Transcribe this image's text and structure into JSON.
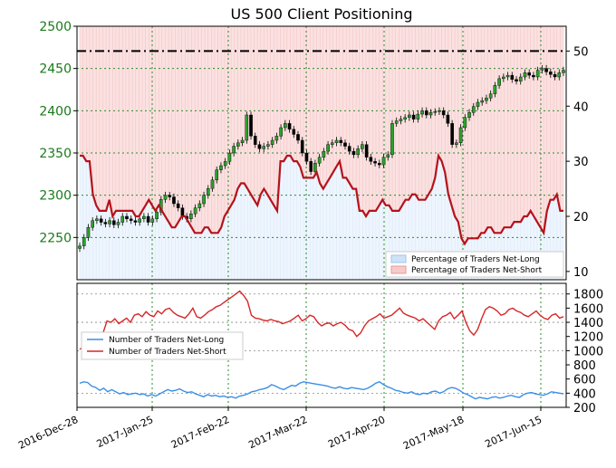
{
  "chart_data": [
    {
      "type": "candlestick",
      "title": "US 500 Client Positioning",
      "left_axis": {
        "ticks": [
          2250,
          2300,
          2350,
          2400,
          2450,
          2500
        ],
        "ylim": [
          2200,
          2500
        ],
        "color": "#1a7a1a"
      },
      "right_axis": {
        "ticks": [
          10,
          20,
          30,
          40,
          50
        ],
        "ylim": [
          8.5,
          54.5
        ]
      },
      "reference_line": {
        "axis": "right",
        "value": 50,
        "style": "dash-dot"
      },
      "x_ticks": [
        "2016-Dec-28",
        "2017-Jan-25",
        "2017-Feb-22",
        "2017-Mar-22",
        "2017-Apr-20",
        "2017-May-18",
        "2017-Jun-15"
      ],
      "legend": {
        "placement": "bottom-right",
        "entries": [
          "Percentage of Traders Net-Long",
          "Percentage of Traders Net-Short"
        ]
      },
      "price_close_approx": [
        2240,
        2250,
        2262,
        2270,
        2272,
        2268,
        2266,
        2270,
        2265,
        2268,
        2275,
        2272,
        2270,
        2268,
        2272,
        2275,
        2268,
        2272,
        2280,
        2295,
        2300,
        2298,
        2290,
        2285,
        2275,
        2272,
        2278,
        2285,
        2290,
        2300,
        2308,
        2318,
        2330,
        2335,
        2340,
        2350,
        2358,
        2362,
        2365,
        2395,
        2370,
        2360,
        2355,
        2358,
        2360,
        2365,
        2370,
        2380,
        2385,
        2378,
        2372,
        2365,
        2350,
        2340,
        2328,
        2338,
        2345,
        2352,
        2360,
        2362,
        2365,
        2362,
        2358,
        2352,
        2348,
        2355,
        2360,
        2345,
        2340,
        2338,
        2336,
        2345,
        2348,
        2385,
        2388,
        2390,
        2392,
        2395,
        2390,
        2396,
        2400,
        2395,
        2398,
        2399,
        2400,
        2395,
        2385,
        2360,
        2362,
        2380,
        2392,
        2398,
        2405,
        2410,
        2412,
        2415,
        2420,
        2430,
        2438,
        2440,
        2442,
        2437,
        2435,
        2440,
        2445,
        2442,
        2440,
        2448,
        2450,
        2446,
        2443,
        2440,
        2445,
        2448
      ],
      "pct_net_short_approx": [
        31,
        31,
        30,
        30,
        24,
        22,
        21,
        21,
        21,
        23,
        20,
        21,
        21,
        21,
        21,
        21,
        21,
        20,
        20,
        21,
        22,
        23,
        22,
        21,
        22,
        21,
        20,
        19,
        18,
        18,
        19,
        20,
        20,
        19,
        18,
        17,
        17,
        17,
        18,
        18,
        17,
        17,
        17,
        18,
        20,
        21,
        22,
        23,
        25,
        26,
        26,
        25,
        24,
        23,
        22,
        24,
        25,
        24,
        23,
        22,
        21,
        30,
        30,
        31,
        31,
        30,
        30,
        29,
        27,
        27,
        27,
        27,
        28,
        26,
        25,
        26,
        27,
        28,
        29,
        30,
        27,
        27,
        26,
        25,
        25,
        21,
        21,
        20,
        21,
        21,
        21,
        22,
        23,
        22,
        22,
        21,
        21,
        21,
        22,
        23,
        23,
        24,
        24,
        23,
        23,
        23,
        24,
        25,
        27,
        31,
        30,
        28,
        24,
        22,
        20,
        19,
        16,
        15,
        16,
        16,
        16,
        16,
        17,
        17,
        18,
        18,
        17,
        17,
        17,
        18,
        18,
        18,
        19,
        19,
        19,
        20,
        20,
        21,
        20,
        19,
        18,
        17,
        21,
        23,
        23,
        24,
        21,
        21
      ]
    },
    {
      "type": "line",
      "y_ticks": [
        200,
        400,
        600,
        800,
        1000,
        1200,
        1400,
        1600,
        1800
      ],
      "ylim": [
        200,
        1950
      ],
      "legend": {
        "placement": "left",
        "entries": [
          "Number of Traders Net-Long",
          "Number of Traders Net-Short"
        ]
      },
      "series": [
        {
          "name": "Number of Traders Net-Long",
          "color": "#3a8ee6",
          "values": [
            540,
            560,
            550,
            500,
            480,
            440,
            470,
            420,
            450,
            420,
            390,
            410,
            380,
            390,
            400,
            380,
            390,
            360,
            380,
            360,
            390,
            420,
            450,
            430,
            440,
            460,
            430,
            410,
            420,
            390,
            370,
            350,
            380,
            360,
            370,
            350,
            360,
            340,
            350,
            330,
            360,
            370,
            390,
            420,
            430,
            450,
            460,
            480,
            520,
            500,
            470,
            450,
            480,
            510,
            500,
            540,
            560,
            550,
            540,
            530,
            520,
            510,
            500,
            480,
            470,
            490,
            470,
            460,
            480,
            470,
            460,
            450,
            470,
            500,
            540,
            560,
            520,
            490,
            470,
            440,
            430,
            410,
            400,
            420,
            390,
            380,
            400,
            390,
            420,
            430,
            400,
            420,
            460,
            480,
            470,
            440,
            400,
            380,
            350,
            320,
            340,
            330,
            320,
            340,
            350,
            330,
            340,
            360,
            370,
            350,
            340,
            380,
            400,
            410,
            390,
            380,
            370,
            390,
            420,
            410,
            400,
            390
          ]
        },
        {
          "name": "Number of Traders Net-Short",
          "color": "#d62728",
          "values": [
            1020,
            1050,
            1000,
            1080,
            1100,
            1180,
            1250,
            1420,
            1400,
            1450,
            1380,
            1420,
            1460,
            1400,
            1500,
            1520,
            1480,
            1550,
            1500,
            1480,
            1560,
            1520,
            1580,
            1600,
            1540,
            1500,
            1480,
            1460,
            1520,
            1600,
            1480,
            1460,
            1500,
            1550,
            1580,
            1620,
            1640,
            1680,
            1720,
            1760,
            1800,
            1840,
            1780,
            1700,
            1500,
            1460,
            1450,
            1430,
            1420,
            1440,
            1420,
            1410,
            1380,
            1400,
            1420,
            1460,
            1500,
            1420,
            1450,
            1500,
            1480,
            1400,
            1350,
            1380,
            1390,
            1350,
            1380,
            1400,
            1360,
            1300,
            1280,
            1200,
            1250,
            1350,
            1420,
            1450,
            1480,
            1520,
            1460,
            1480,
            1500,
            1550,
            1600,
            1530,
            1500,
            1480,
            1460,
            1420,
            1450,
            1400,
            1350,
            1300,
            1420,
            1480,
            1500,
            1540,
            1450,
            1500,
            1560,
            1400,
            1280,
            1220,
            1300,
            1450,
            1580,
            1620,
            1600,
            1560,
            1500,
            1520,
            1580,
            1600,
            1560,
            1540,
            1500,
            1480,
            1520,
            1560,
            1500,
            1460,
            1440,
            1500,
            1520,
            1460,
            1480
          ]
        }
      ]
    }
  ]
}
